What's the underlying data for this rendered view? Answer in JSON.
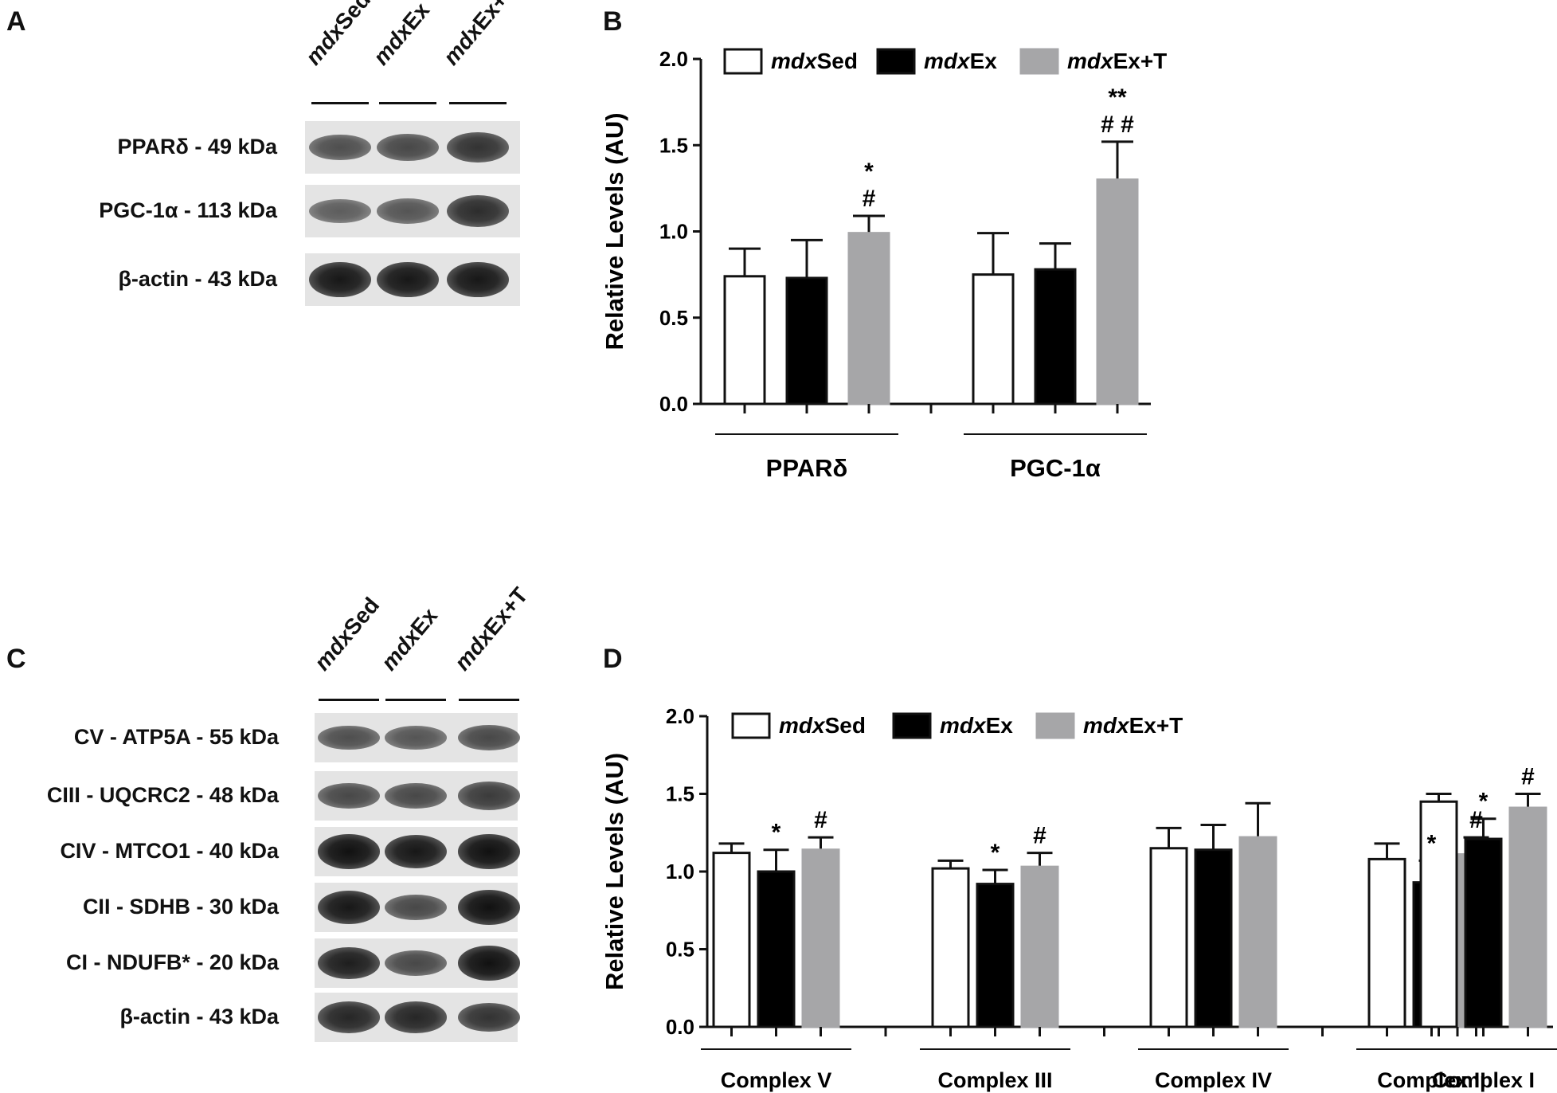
{
  "panel_a": {
    "letter": "A",
    "lanes": [
      {
        "italic": "mdx",
        "rest": "Sed"
      },
      {
        "italic": "mdx",
        "rest": "Ex"
      },
      {
        "italic": "mdx",
        "rest": "Ex+T"
      }
    ],
    "rows": [
      {
        "label": "PPARδ - 49 kDa",
        "intensity": [
          0.55,
          0.6,
          0.75
        ]
      },
      {
        "label": "PGC-1α - 113 kDa",
        "intensity": [
          0.45,
          0.5,
          0.8
        ]
      },
      {
        "label": "β-actin - 43 kDa",
        "intensity": [
          0.95,
          0.95,
          0.95
        ]
      }
    ]
  },
  "panel_c": {
    "letter": "C",
    "lanes": [
      {
        "italic": "mdx",
        "rest": "Sed"
      },
      {
        "italic": "mdx",
        "rest": "Ex"
      },
      {
        "italic": "mdx",
        "rest": "Ex+T"
      }
    ],
    "rows": [
      {
        "label": "CV - ATP5A - 55 kDa",
        "intensity": [
          0.55,
          0.5,
          0.6
        ]
      },
      {
        "label": "CIII - UQCRC2 - 48 kDa",
        "intensity": [
          0.6,
          0.6,
          0.7
        ]
      },
      {
        "label": "CIV - MTCO1 - 40 kDa",
        "intensity": [
          1.0,
          0.95,
          1.0
        ]
      },
      {
        "label": "CII - SDHB - 30 kDa",
        "intensity": [
          0.95,
          0.6,
          1.0
        ]
      },
      {
        "label": "CI - NDUFB* - 20 kDa",
        "intensity": [
          0.9,
          0.6,
          1.0
        ]
      },
      {
        "label": "β-actin - 43 kDa",
        "intensity": [
          0.85,
          0.85,
          0.75
        ]
      }
    ]
  },
  "chart_data": [
    {
      "panel_letter": "B",
      "type": "bar",
      "ylabel": "Relative Levels (AU)",
      "ylim": [
        0,
        2.0
      ],
      "yticks": [
        "0.0",
        "0.5",
        "1.0",
        "1.5",
        "2.0"
      ],
      "legend": [
        {
          "italic": "mdx",
          "rest": "Sed",
          "color": "#ffffff"
        },
        {
          "italic": "mdx",
          "rest": "Ex",
          "color": "#000000"
        },
        {
          "italic": "mdx",
          "rest": "Ex+T",
          "color": "#a6a6a8"
        }
      ],
      "legend_position": "top",
      "categories": [
        "PPARδ",
        "PGC-1α"
      ],
      "series": [
        {
          "values": [
            0.74,
            0.75
          ],
          "errors": [
            0.16,
            0.24
          ]
        },
        {
          "values": [
            0.73,
            0.78
          ],
          "errors": [
            0.22,
            0.15
          ]
        },
        {
          "values": [
            0.99,
            1.3
          ],
          "errors": [
            0.1,
            0.22
          ]
        }
      ],
      "annotations": [
        {
          "category": 0,
          "series": 2,
          "lines": [
            "*",
            "#"
          ]
        },
        {
          "category": 1,
          "series": 2,
          "lines": [
            "**",
            "##"
          ]
        }
      ]
    },
    {
      "panel_letter": "D",
      "type": "bar",
      "ylabel": "Relative Levels (AU)",
      "ylim": [
        0,
        2.0
      ],
      "yticks": [
        "0.0",
        "0.5",
        "1.0",
        "1.5",
        "2.0"
      ],
      "legend": [
        {
          "italic": "mdx",
          "rest": "Sed",
          "color": "#ffffff"
        },
        {
          "italic": "mdx",
          "rest": "Ex",
          "color": "#000000"
        },
        {
          "italic": "mdx",
          "rest": "Ex+T",
          "color": "#a6a6a8"
        }
      ],
      "legend_position": "top",
      "categories": [
        "Complex V",
        "Complex III",
        "Complex IV",
        "Complex II",
        "Complex I"
      ],
      "series": [
        {
          "values": [
            1.12,
            1.02,
            1.15,
            1.08,
            1.45
          ],
          "errors": [
            0.06,
            0.05,
            0.13,
            0.1,
            0.05
          ]
        },
        {
          "values": [
            1.0,
            0.92,
            1.14,
            0.93,
            1.21
          ],
          "errors": [
            0.14,
            0.09,
            0.16,
            0.14,
            0.13
          ]
        },
        {
          "values": [
            1.14,
            1.03,
            1.22,
            1.11,
            1.41
          ],
          "errors": [
            0.08,
            0.09,
            0.22,
            0.11,
            0.09
          ]
        }
      ],
      "annotations": [
        {
          "category": 0,
          "series": 1,
          "lines": [
            "*"
          ]
        },
        {
          "category": 0,
          "series": 2,
          "lines": [
            "#"
          ]
        },
        {
          "category": 1,
          "series": 1,
          "lines": [
            "*"
          ]
        },
        {
          "category": 1,
          "series": 2,
          "lines": [
            "#"
          ]
        },
        {
          "category": 3,
          "series": 1,
          "lines": [
            "*"
          ]
        },
        {
          "category": 3,
          "series": 2,
          "lines": [
            "#"
          ]
        },
        {
          "category": 4,
          "series": 1,
          "lines": [
            "*"
          ]
        },
        {
          "category": 4,
          "series": 2,
          "lines": [
            "#"
          ]
        }
      ]
    }
  ]
}
